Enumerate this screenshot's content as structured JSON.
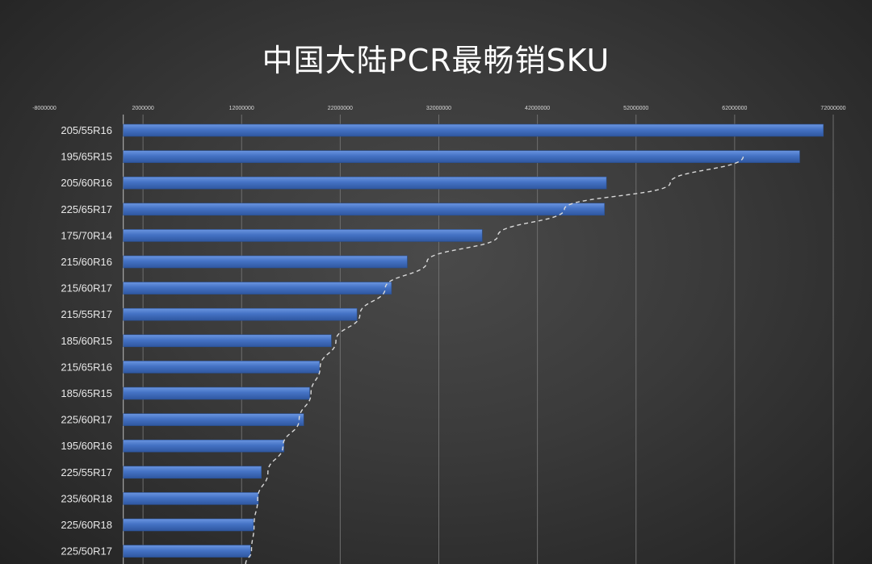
{
  "chart_data": {
    "type": "bar",
    "orientation": "horizontal",
    "title": "中国大陆PCR最畅销SKU",
    "xlabel": "",
    "ylabel": "",
    "xlim": [
      -8000000,
      72000000
    ],
    "xticks": [
      "-8000000",
      "2000000",
      "12000000",
      "22000000",
      "32000000",
      "42000000",
      "52000000",
      "62000000",
      "72000000"
    ],
    "xtick_values": [
      -8000000,
      2000000,
      12000000,
      22000000,
      32000000,
      42000000,
      52000000,
      62000000,
      72000000
    ],
    "grid": true,
    "categories": [
      "205/55R16",
      "195/65R15",
      "205/60R16",
      "225/65R17",
      "175/70R14",
      "215/60R16",
      "215/60R17",
      "215/55R17",
      "185/60R15",
      "215/65R16",
      "185/65R15",
      "225/60R17",
      "195/60R16",
      "225/55R17",
      "235/60R18",
      "225/60R18",
      "225/50R17"
    ],
    "values": [
      71000000,
      68600000,
      49000000,
      48800000,
      36400000,
      28800000,
      27200000,
      23700000,
      21100000,
      19900000,
      18900000,
      18300000,
      16300000,
      14000000,
      13700000,
      13200000,
      12900000
    ],
    "trendline": {
      "style": "dashed",
      "color": "#d9d9d9"
    },
    "bar_color": "#4472c4"
  }
}
